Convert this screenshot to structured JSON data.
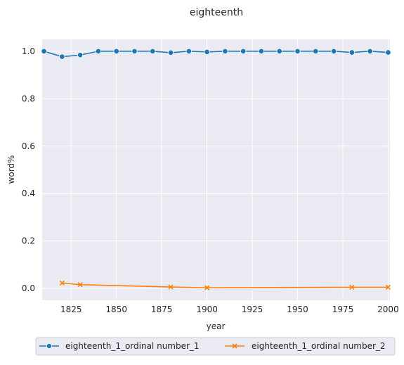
{
  "chart_data": {
    "type": "line",
    "title": "eighteenth",
    "xlabel": "year",
    "ylabel": "word%",
    "xlim": [
      1809,
      2001
    ],
    "ylim": [
      -0.05,
      1.05
    ],
    "x_ticks": [
      1825,
      1850,
      1875,
      1900,
      1925,
      1950,
      1975,
      2000
    ],
    "x_tick_labels": [
      "1825",
      "1850",
      "1875",
      "1900",
      "1925",
      "1950",
      "1975",
      "2000"
    ],
    "y_ticks": [
      0.0,
      0.2,
      0.4,
      0.6,
      0.8,
      1.0
    ],
    "y_tick_labels": [
      "0.0",
      "0.2",
      "0.4",
      "0.6",
      "0.8",
      "1.0"
    ],
    "grid": true,
    "legend_position": "bottom-center",
    "series": [
      {
        "name": "eighteenth_1_ordinal number_1",
        "color": "#1f77b4",
        "marker": "circle",
        "points": [
          [
            1810,
            1.0
          ],
          [
            1820,
            0.977
          ],
          [
            1830,
            0.984
          ],
          [
            1840,
            1.0
          ],
          [
            1850,
            1.0
          ],
          [
            1860,
            1.0
          ],
          [
            1870,
            1.0
          ],
          [
            1880,
            0.994
          ],
          [
            1890,
            1.0
          ],
          [
            1900,
            0.997
          ],
          [
            1910,
            1.0
          ],
          [
            1920,
            1.0
          ],
          [
            1930,
            1.0
          ],
          [
            1940,
            1.0
          ],
          [
            1950,
            1.0
          ],
          [
            1960,
            1.0
          ],
          [
            1970,
            1.0
          ],
          [
            1980,
            0.995
          ],
          [
            1990,
            1.0
          ],
          [
            2000,
            0.995
          ]
        ]
      },
      {
        "name": "eighteenth_1_ordinal number_2",
        "color": "#ff7f0e",
        "marker": "x",
        "points": [
          [
            1820,
            0.023
          ],
          [
            1830,
            0.016
          ],
          [
            1880,
            0.006
          ],
          [
            1900,
            0.003
          ],
          [
            1980,
            0.005
          ],
          [
            2000,
            0.005
          ]
        ]
      }
    ]
  }
}
